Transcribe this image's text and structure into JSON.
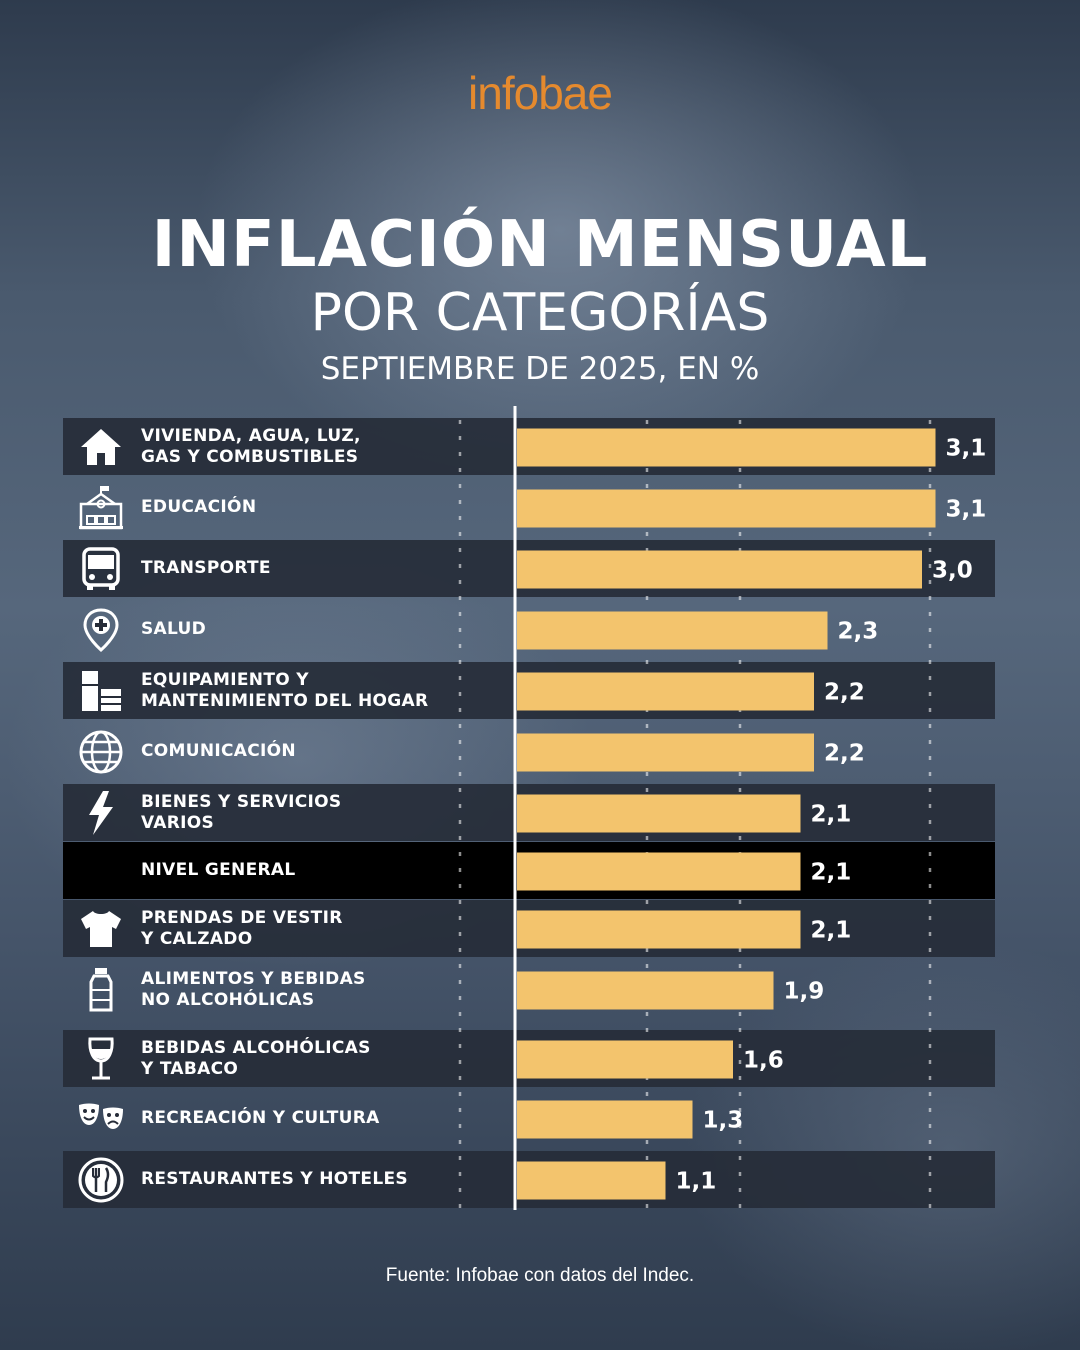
{
  "brand": "infobae",
  "header": {
    "title": "INFLACIÓN MENSUAL",
    "subtitle": "POR CATEGORÍAS",
    "subtitle2": "SEPTIEMBRE DE 2025, EN %"
  },
  "source": "Fuente: Infobae con datos del Indec.",
  "colors": {
    "bar": "#f3c46d",
    "brand": "#e58a2e",
    "row_dark": "#262c38",
    "row_general": "#000000",
    "text": "#ffffff"
  },
  "chart_data": {
    "type": "bar",
    "orientation": "horizontal",
    "title": "INFLACIÓN MENSUAL",
    "categories": [
      "VIVIENDA, AGUA, LUZ,\nGAS Y COMBUSTIBLES",
      "EDUCACIÓN",
      "TRANSPORTE",
      "SALUD",
      "EQUIPAMIENTO Y\nMANTENIMIENTO DEL HOGAR",
      "COMUNICACIÓN",
      "BIENES Y SERVICIOS\nVARIOS",
      "NIVEL GENERAL",
      "PRENDAS DE VESTIR\nY CALZADO",
      "ALIMENTOS Y BEBIDAS\nNO ALCOHÓLICAS",
      "BEBIDAS ALCOHÓLICAS\nY TABACO",
      "RECREACIÓN Y CULTURA",
      "RESTAURANTES Y HOTELES"
    ],
    "values": [
      3.1,
      3.1,
      3.0,
      2.3,
      2.2,
      2.2,
      2.1,
      2.1,
      2.1,
      1.9,
      1.6,
      1.3,
      1.1
    ],
    "value_labels": [
      "3,1",
      "3,1",
      "3,0",
      "2,3",
      "2,2",
      "2,2",
      "2,1",
      "2,1",
      "2,1",
      "1,9",
      "1,6",
      "1,3",
      "1,1"
    ],
    "icons": [
      "house-icon",
      "school-icon",
      "bus-icon",
      "health-pin-icon",
      "appliance-icon",
      "globe-icon",
      "bolt-icon",
      "",
      "tshirt-icon",
      "bottle-icon",
      "wine-glass-icon",
      "theater-masks-icon",
      "plate-cutlery-icon"
    ],
    "highlight_category": "NIVEL GENERAL",
    "xlim": [
      0,
      3.5
    ],
    "xlabel": "",
    "ylabel": "",
    "grid": true,
    "legend": "none"
  }
}
